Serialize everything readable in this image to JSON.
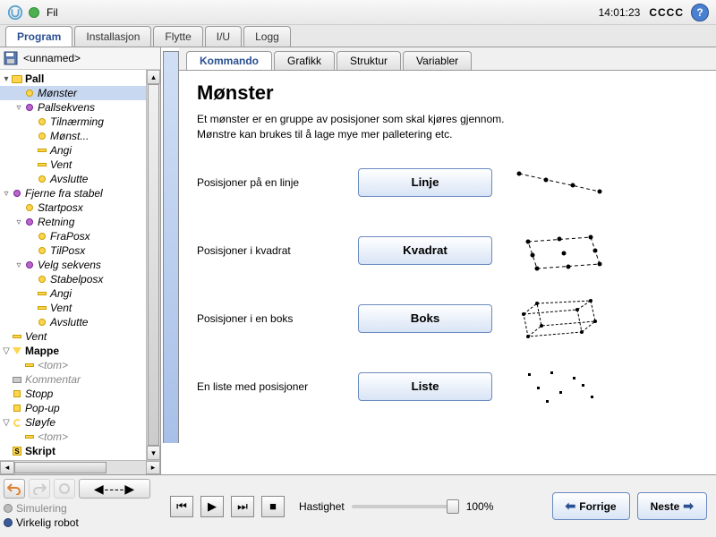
{
  "topbar": {
    "fil": "Fil",
    "time": "14:01:23",
    "cccc": "CCCC",
    "help": "?"
  },
  "mainTabs": [
    "Program",
    "Installasjon",
    "Flytte",
    "I/U",
    "Logg"
  ],
  "mainActive": 0,
  "fileName": "<unnamed>",
  "tree": [
    {
      "d": 0,
      "t": "▾",
      "i": "folder",
      "l": "Pall",
      "b": 1
    },
    {
      "d": 1,
      "t": "",
      "i": "circle-y",
      "l": "Mønster",
      "sel": 1
    },
    {
      "d": 1,
      "t": "▿",
      "i": "circle-p",
      "l": "Pallsekvens"
    },
    {
      "d": 2,
      "t": "",
      "i": "circle-y",
      "l": "Tilnærming"
    },
    {
      "d": 2,
      "t": "",
      "i": "circle-y",
      "l": "Mønst..."
    },
    {
      "d": 2,
      "t": "",
      "i": "bar",
      "l": "Angi"
    },
    {
      "d": 2,
      "t": "",
      "i": "bar",
      "l": "Vent"
    },
    {
      "d": 2,
      "t": "",
      "i": "circle-y",
      "l": "Avslutte"
    },
    {
      "d": 0,
      "t": "▿",
      "i": "circle-p",
      "l": "Fjerne fra stabel"
    },
    {
      "d": 1,
      "t": "",
      "i": "circle-y",
      "l": "Startposx"
    },
    {
      "d": 1,
      "t": "▿",
      "i": "circle-p",
      "l": "Retning"
    },
    {
      "d": 2,
      "t": "",
      "i": "circle-y",
      "l": "FraPosx"
    },
    {
      "d": 2,
      "t": "",
      "i": "circle-y",
      "l": "TilPosx"
    },
    {
      "d": 1,
      "t": "▿",
      "i": "circle-p",
      "l": "Velg sekvens"
    },
    {
      "d": 2,
      "t": "",
      "i": "circle-y",
      "l": "Stabelposx"
    },
    {
      "d": 2,
      "t": "",
      "i": "bar",
      "l": "Angi"
    },
    {
      "d": 2,
      "t": "",
      "i": "bar",
      "l": "Vent"
    },
    {
      "d": 2,
      "t": "",
      "i": "circle-y",
      "l": "Avslutte"
    },
    {
      "d": 0,
      "t": "",
      "i": "bar",
      "l": "Vent"
    },
    {
      "d": 0,
      "t": "▽",
      "i": "tri",
      "l": "Mappe",
      "b": 1
    },
    {
      "d": 1,
      "t": "",
      "i": "bar",
      "l": "<tom>",
      "g": 1
    },
    {
      "d": 0,
      "t": "",
      "i": "comment",
      "l": "Kommentar",
      "g": 1
    },
    {
      "d": 0,
      "t": "",
      "i": "stop",
      "l": "Stopp"
    },
    {
      "d": 0,
      "t": "",
      "i": "stop",
      "l": "Pop-up"
    },
    {
      "d": 0,
      "t": "▽",
      "i": "loop",
      "l": "Sløyfe"
    },
    {
      "d": 1,
      "t": "",
      "i": "bar",
      "l": "<tom>",
      "g": 1
    },
    {
      "d": 0,
      "t": "",
      "i": "script",
      "l": "Skript",
      "b": 1
    }
  ],
  "subTabs": [
    "Kommando",
    "Grafikk",
    "Struktur",
    "Variabler"
  ],
  "subActive": 0,
  "content": {
    "title": "Mønster",
    "desc1": "Et mønster er en gruppe av posisjoner som skal kjøres gjennom.",
    "desc2": "Mønstre kan brukes til å lage mye mer palletering etc.",
    "rows": [
      {
        "lbl": "Posisjoner på en linje",
        "btn": "Linje"
      },
      {
        "lbl": "Posisjoner i kvadrat",
        "btn": "Kvadrat"
      },
      {
        "lbl": "Posisjoner i en boks",
        "btn": "Boks"
      },
      {
        "lbl": "En liste med posisjoner",
        "btn": "Liste"
      }
    ]
  },
  "bottom": {
    "sim": "Simulering",
    "real": "Virkelig robot",
    "speed": "Hastighet",
    "speedVal": "100%",
    "prev": "Forrige",
    "next": "Neste"
  }
}
